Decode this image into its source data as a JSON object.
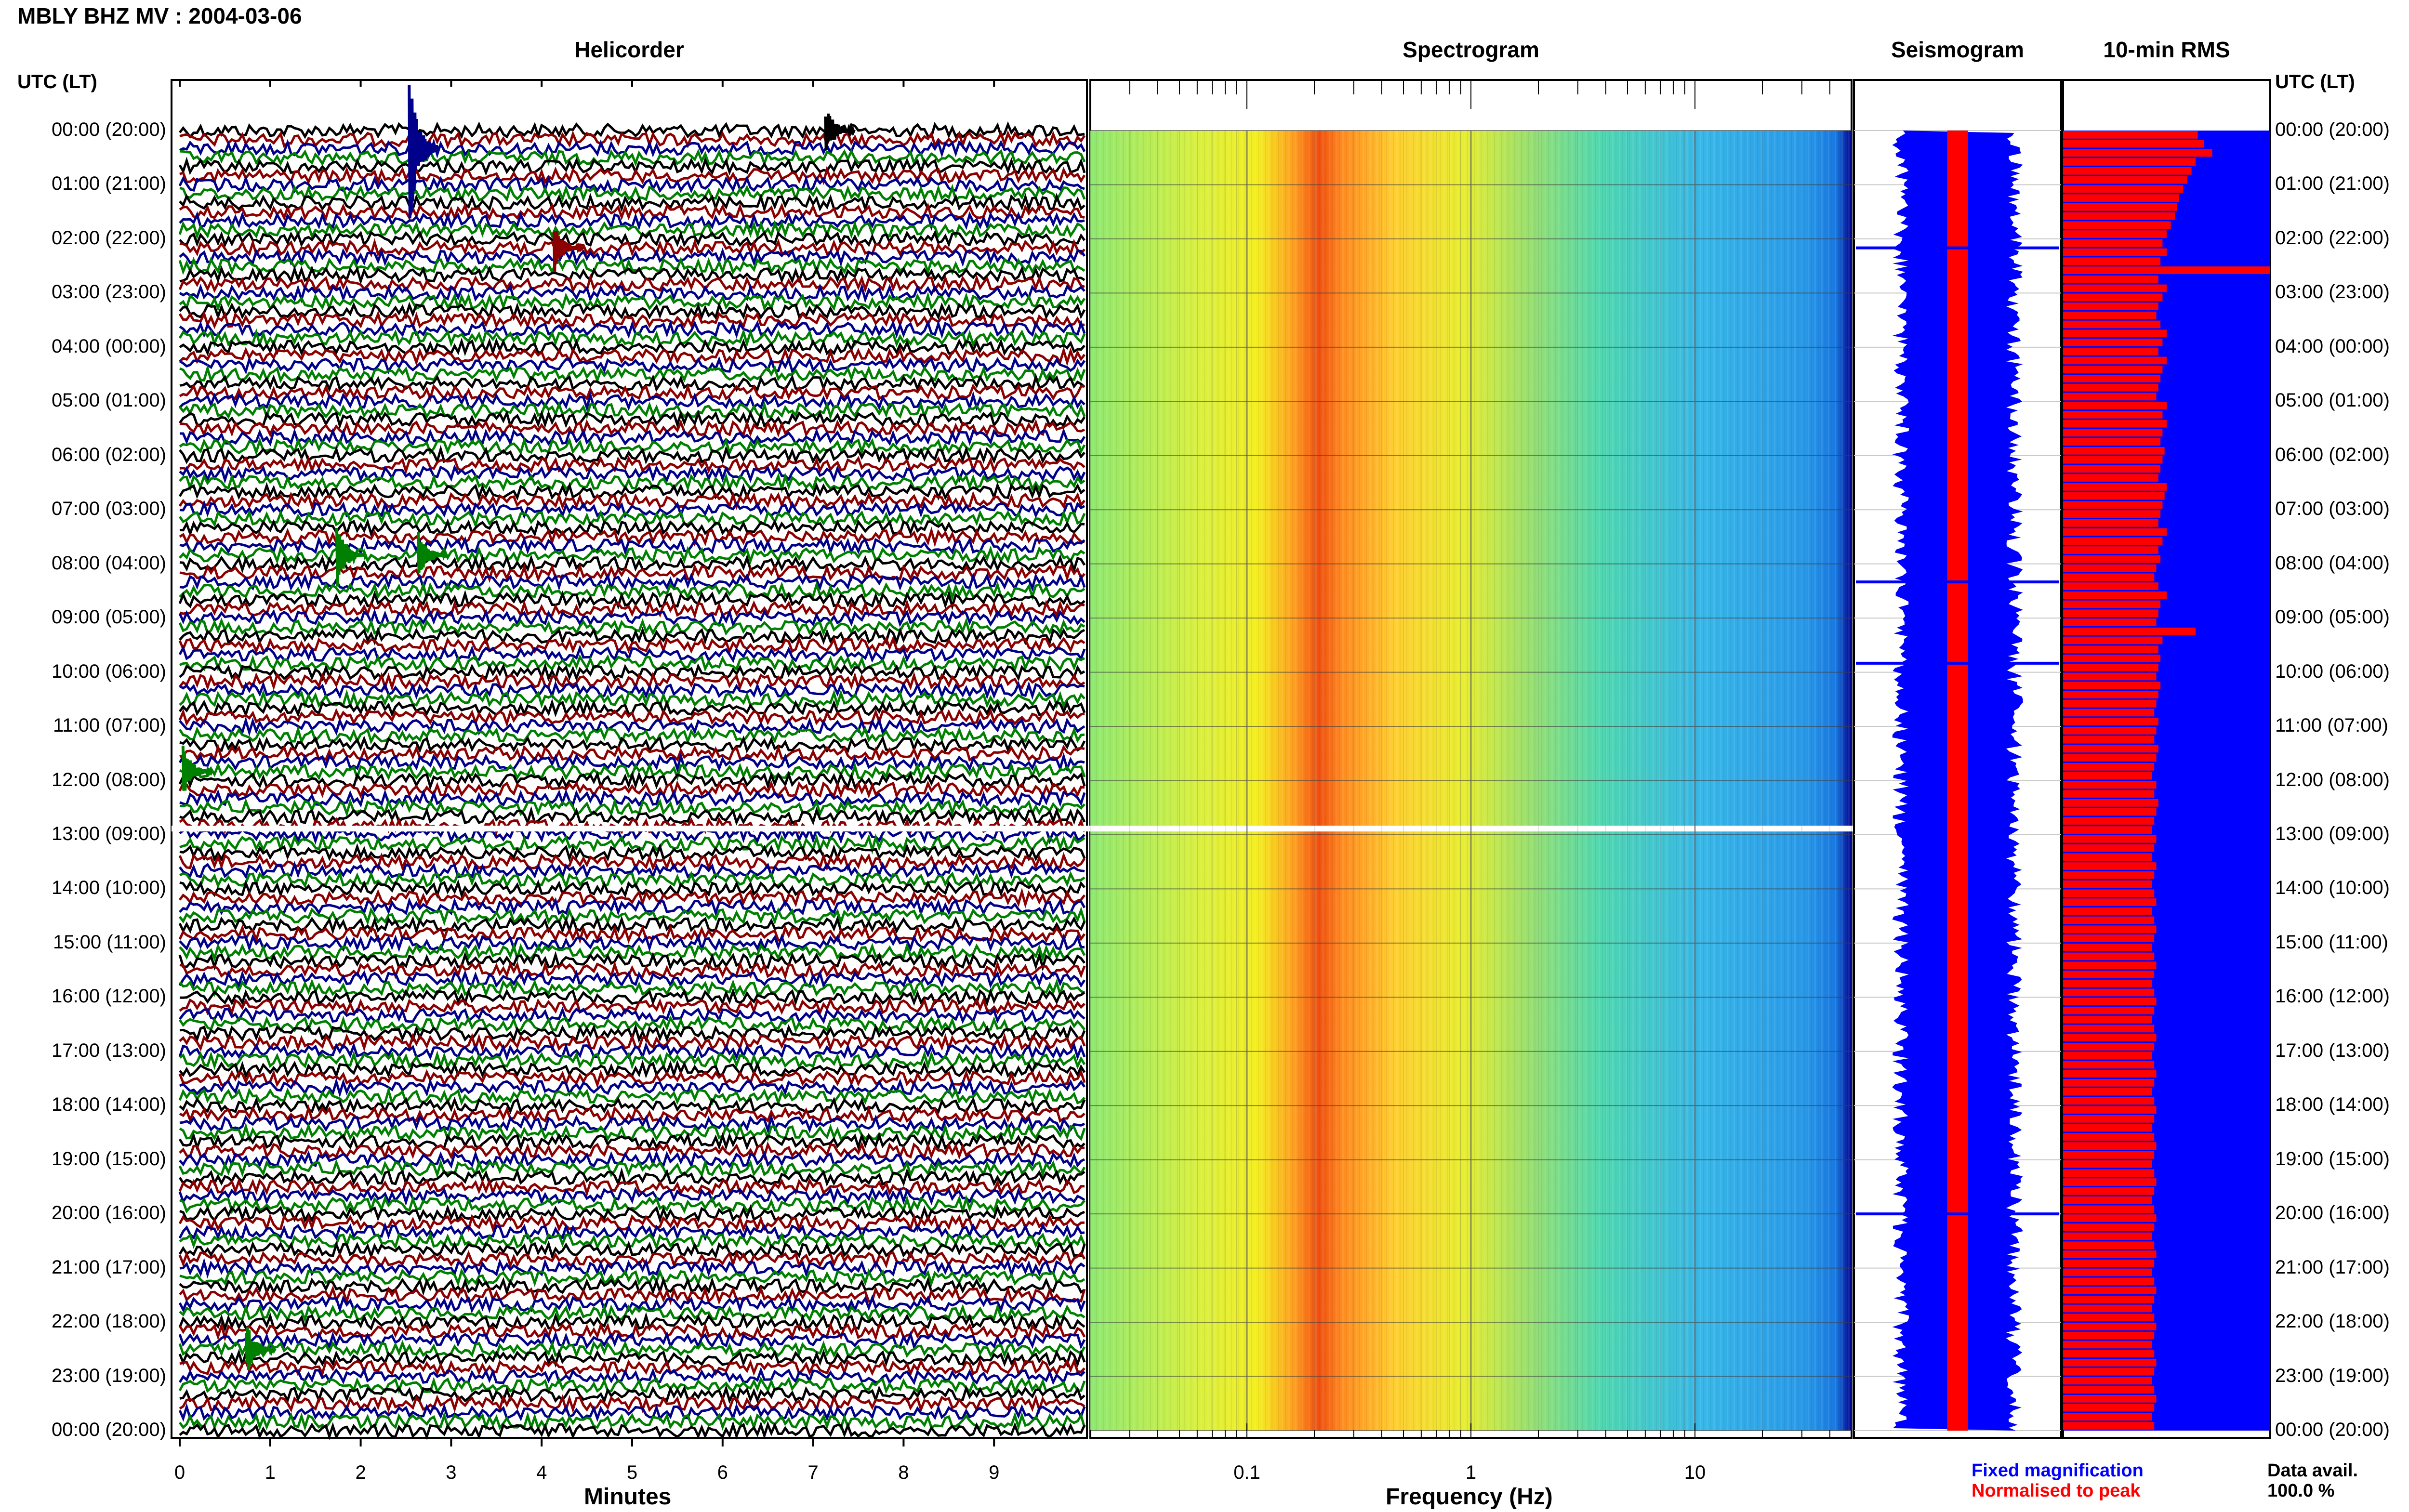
{
  "header": {
    "title": "MBLY BHZ MV : 2004-03-06"
  },
  "panels": {
    "helicorder": "Helicorder",
    "spectrogram": "Spectrogram",
    "seismogram": "Seismogram",
    "rms": "10-min RMS"
  },
  "time_axis_label": "UTC (LT)",
  "time_labels": [
    "00:00 (20:00)",
    "01:00 (21:00)",
    "02:00 (22:00)",
    "03:00 (23:00)",
    "04:00 (00:00)",
    "05:00 (01:00)",
    "06:00 (02:00)",
    "07:00 (03:00)",
    "08:00 (04:00)",
    "09:00 (05:00)",
    "10:00 (06:00)",
    "11:00 (07:00)",
    "12:00 (08:00)",
    "13:00 (09:00)",
    "14:00 (10:00)",
    "15:00 (11:00)",
    "16:00 (12:00)",
    "17:00 (13:00)",
    "18:00 (14:00)",
    "19:00 (15:00)",
    "20:00 (16:00)",
    "21:00 (17:00)",
    "22:00 (18:00)",
    "23:00 (19:00)",
    "00:00 (20:00)"
  ],
  "x_axes": {
    "minutes": {
      "label": "Minutes",
      "ticks": [
        "0",
        "1",
        "2",
        "3",
        "4",
        "5",
        "6",
        "7",
        "8",
        "9"
      ]
    },
    "frequency": {
      "label": "Frequency (Hz)",
      "ticks": [
        "0.1",
        "1",
        "10"
      ],
      "scale": "log",
      "range": [
        0.02,
        50
      ]
    }
  },
  "legend": {
    "fixed": "Fixed magnification",
    "normalised": "Normalised to peak",
    "data_avail_label": "Data avail.",
    "data_avail_value": "100.0 %"
  },
  "colors": {
    "heli_traces": [
      "#000000",
      "#8b0000",
      "#00008b",
      "#008000"
    ],
    "seis_fixed": "#0000ff",
    "seis_norm": "#ff0000",
    "rms_bar": "#ff0000",
    "rms_bg": "#0000ff",
    "legend_fixed": "#0000ff",
    "legend_norm": "#ff0000",
    "gridline": "#808080"
  },
  "chart_data": [
    {
      "type": "line",
      "title": "Helicorder",
      "xlabel": "Minutes",
      "x_range": [
        0,
        10
      ],
      "rows": 144,
      "row_minutes": 10,
      "notable_events": [
        {
          "start_utc": "00:20",
          "minute": 2.6,
          "relative_amplitude": 9
        },
        {
          "start_utc": "00:00",
          "minute": 7.2,
          "relative_amplitude": 3
        },
        {
          "start_utc": "02:10",
          "minute": 4.2,
          "relative_amplitude": 3
        },
        {
          "start_utc": "07:50",
          "minute": 1.8,
          "relative_amplitude": 4
        },
        {
          "start_utc": "07:50",
          "minute": 2.7,
          "relative_amplitude": 3
        },
        {
          "start_utc": "11:50",
          "minute": 0.1,
          "relative_amplitude": 3
        },
        {
          "start_utc": "22:30",
          "minute": 0.8,
          "relative_amplitude": 3
        }
      ]
    },
    {
      "type": "heatmap",
      "title": "Spectrogram",
      "xlabel": "Frequency (Hz)",
      "x_scale": "log",
      "x_range": [
        0.02,
        50
      ],
      "peak_band_hz": [
        0.2,
        0.4
      ],
      "gaps_utc": [
        "12:50"
      ]
    },
    {
      "type": "line",
      "title": "Seismogram",
      "series": [
        {
          "name": "Fixed magnification",
          "relative_width": 0.55
        },
        {
          "name": "Normalised to peak",
          "relative_width": 0.1
        }
      ],
      "spikes_utc": [
        "02:10",
        "08:20",
        "09:50",
        "20:00"
      ]
    },
    {
      "type": "bar",
      "title": "10-min RMS",
      "y_range": [
        "00:00",
        "24:00"
      ],
      "rms_relative": [
        0.65,
        0.68,
        0.72,
        0.64,
        0.62,
        0.6,
        0.58,
        0.56,
        0.55,
        0.54,
        0.52,
        0.5,
        0.48,
        0.5,
        0.47,
        1.0,
        0.46,
        0.5,
        0.48,
        0.46,
        0.45,
        0.47,
        0.5,
        0.48,
        0.46,
        0.5,
        0.48,
        0.47,
        0.46,
        0.45,
        0.5,
        0.48,
        0.5,
        0.48,
        0.47,
        0.49,
        0.48,
        0.47,
        0.46,
        0.5,
        0.49,
        0.48,
        0.47,
        0.46,
        0.5,
        0.48,
        0.46,
        0.47,
        0.45,
        0.44,
        0.46,
        0.5,
        0.47,
        0.46,
        0.45,
        0.64,
        0.48,
        0.46,
        0.47,
        0.46,
        0.45,
        0.47,
        0.46,
        0.45,
        0.44,
        0.46,
        0.45,
        0.44,
        0.46,
        0.45,
        0.44,
        0.43,
        0.45,
        0.44,
        0.46,
        0.45,
        0.44,
        0.43,
        0.45,
        0.44,
        0.43,
        0.45,
        0.44,
        0.43,
        0.44,
        0.45,
        0.43,
        0.44,
        0.45,
        0.44,
        0.43,
        0.44,
        0.45,
        0.44,
        0.43,
        0.44,
        0.45,
        0.44,
        0.43,
        0.44,
        0.45,
        0.44,
        0.43,
        0.44,
        0.45,
        0.44,
        0.43,
        0.44,
        0.45,
        0.44,
        0.43,
        0.44,
        0.45,
        0.44,
        0.43,
        0.44,
        0.45,
        0.44,
        0.43,
        0.44,
        0.45,
        0.44,
        0.43,
        0.44,
        0.45,
        0.44,
        0.43,
        0.44,
        0.45,
        0.44,
        0.43,
        0.44,
        0.45,
        0.44,
        0.43,
        0.44,
        0.45,
        0.44,
        0.43,
        0.44,
        0.45,
        0.44,
        0.43,
        0.44
      ]
    }
  ]
}
